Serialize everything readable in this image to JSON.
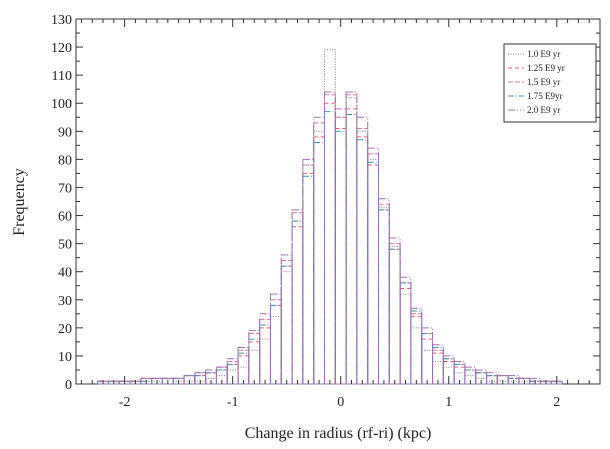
{
  "chart_data": {
    "type": "bar",
    "xlabel": "Change in radius (rf-ri) (kpc)",
    "ylabel": "Frequency",
    "xlim": [
      -2.45,
      2.4
    ],
    "ylim": [
      0,
      130
    ],
    "x_ticks": [
      -2,
      -1,
      0,
      1,
      2
    ],
    "y_ticks": [
      0,
      10,
      20,
      30,
      40,
      50,
      60,
      70,
      80,
      90,
      100,
      110,
      120,
      130
    ],
    "bin_width": 0.1,
    "bin_centers": [
      -2.2,
      -2.1,
      -2.0,
      -1.9,
      -1.8,
      -1.7,
      -1.6,
      -1.5,
      -1.4,
      -1.3,
      -1.2,
      -1.1,
      -1.0,
      -0.9,
      -0.8,
      -0.7,
      -0.6,
      -0.5,
      -0.4,
      -0.3,
      -0.2,
      -0.1,
      0.0,
      0.1,
      0.2,
      0.3,
      0.4,
      0.5,
      0.6,
      0.7,
      0.8,
      0.9,
      1.0,
      1.1,
      1.2,
      1.3,
      1.4,
      1.5,
      1.6,
      1.7,
      1.8,
      1.9,
      2.0,
      2.1
    ],
    "legend_position": "top-right",
    "grid": false,
    "series": [
      {
        "name": "1.0 E9 yr",
        "color": "#7a7a7a",
        "dash": "1,1.5",
        "values": [
          0,
          1,
          1,
          0,
          1,
          1,
          2,
          1,
          1,
          1,
          2,
          3,
          5,
          6,
          12,
          16,
          24,
          40,
          58,
          78,
          90,
          119,
          95,
          102,
          90,
          80,
          63,
          49,
          32,
          20,
          12,
          8,
          6,
          4,
          3,
          2,
          1,
          1,
          1,
          1,
          0,
          0,
          0,
          0
        ]
      },
      {
        "name": "1.25 E9 yr",
        "color": "#e06070",
        "dash": "4,3",
        "values": [
          1,
          1,
          1,
          1,
          2,
          2,
          2,
          2,
          3,
          3,
          4,
          5,
          7,
          10,
          15,
          20,
          28,
          42,
          56,
          75,
          88,
          100,
          91,
          98,
          88,
          78,
          62,
          48,
          34,
          24,
          16,
          11,
          8,
          6,
          5,
          4,
          3,
          3,
          2,
          2,
          1,
          1,
          1,
          0
        ]
      },
      {
        "name": "1.5 E9 yr",
        "color": "#d07aa0",
        "dash": "5,2",
        "values": [
          1,
          1,
          1,
          1,
          2,
          2,
          2,
          2,
          3,
          4,
          4,
          6,
          8,
          12,
          18,
          23,
          30,
          44,
          61,
          78,
          93,
          103,
          95,
          103,
          91,
          82,
          64,
          50,
          36,
          25,
          18,
          12,
          9,
          7,
          5,
          4,
          3,
          3,
          2,
          2,
          1,
          1,
          1,
          0
        ]
      },
      {
        "name": "1.75 E9yr",
        "color": "#4a8fb0",
        "dash": "6,2,1,2",
        "values": [
          1,
          1,
          1,
          1,
          1,
          2,
          2,
          2,
          3,
          3,
          4,
          5,
          7,
          11,
          16,
          21,
          28,
          42,
          58,
          74,
          86,
          97,
          90,
          96,
          87,
          79,
          62,
          48,
          36,
          26,
          18,
          13,
          9,
          7,
          5,
          4,
          3,
          3,
          2,
          2,
          1,
          1,
          1,
          0
        ]
      },
      {
        "name": "2.0 E9 yr",
        "color": "#a070b0",
        "dash": "7,2,1,2,1,2",
        "values": [
          1,
          1,
          1,
          1,
          2,
          2,
          2,
          2,
          3,
          4,
          5,
          6,
          9,
          13,
          19,
          25,
          32,
          46,
          62,
          80,
          95,
          104,
          98,
          104,
          95,
          84,
          66,
          52,
          38,
          27,
          20,
          14,
          10,
          8,
          6,
          5,
          4,
          3,
          3,
          2,
          2,
          1,
          1,
          0
        ]
      }
    ]
  }
}
